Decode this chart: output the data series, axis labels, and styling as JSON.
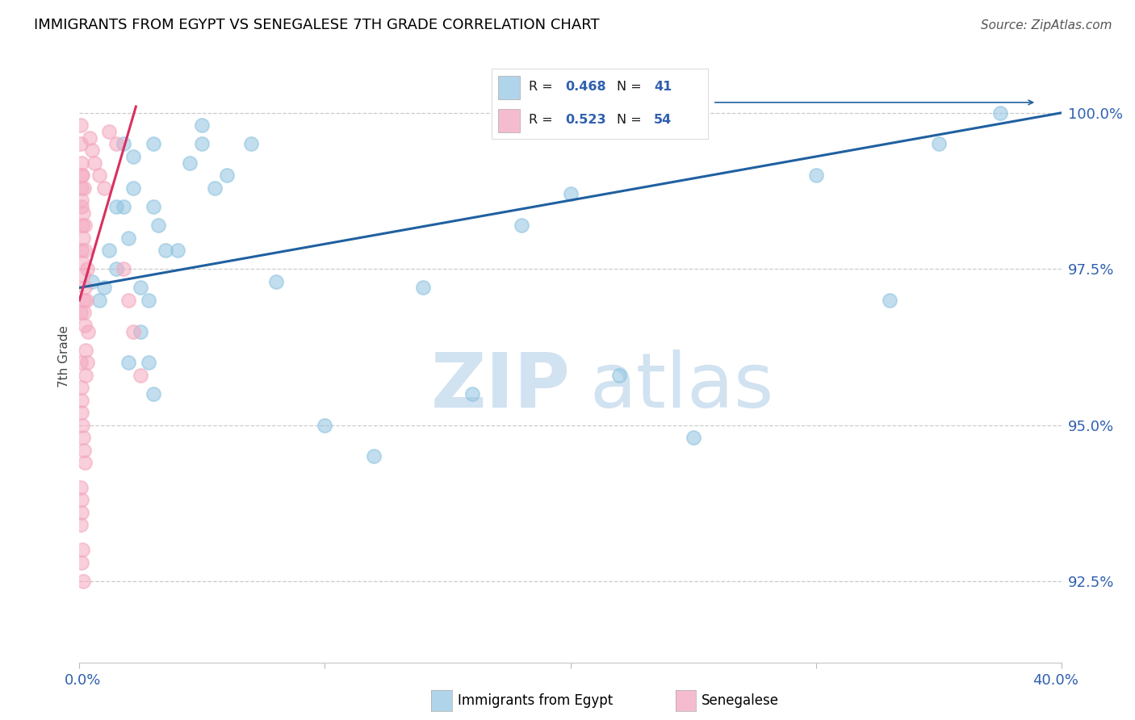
{
  "title": "IMMIGRANTS FROM EGYPT VS SENEGALESE 7TH GRADE CORRELATION CHART",
  "source": "Source: ZipAtlas.com",
  "ylabel": "7th Grade",
  "yticks": [
    92.5,
    95.0,
    97.5,
    100.0
  ],
  "ytick_labels": [
    "92.5%",
    "95.0%",
    "97.5%",
    "100.0%"
  ],
  "xlim": [
    0.0,
    40.0
  ],
  "ylim": [
    91.2,
    101.0
  ],
  "legend1_r": "0.468",
  "legend1_n": "41",
  "legend2_r": "0.523",
  "legend2_n": "54",
  "blue_scatter_color": "#90c4e0",
  "pink_scatter_color": "#f4a8bf",
  "blue_line_color": "#2060a0",
  "pink_line_color": "#d93060",
  "legend_blue_fill": "#b0d4ea",
  "legend_pink_fill": "#f5bccf",
  "legend_text_color": "#1a1a1a",
  "legend_number_color": "#3060b0",
  "ytick_color": "#3060b0",
  "xlim_label_color": "#3060b0",
  "blue_x": [
    0.5,
    0.8,
    1.0,
    1.2,
    1.5,
    1.8,
    2.0,
    2.2,
    2.5,
    2.8,
    3.0,
    3.2,
    3.5,
    4.0,
    4.5,
    5.0,
    5.5,
    6.0,
    7.0,
    8.0,
    10.0,
    12.0,
    14.0,
    16.0,
    18.0,
    20.0,
    22.0,
    25.0,
    30.0,
    33.0,
    35.0,
    37.5,
    2.0,
    2.5,
    3.0,
    1.5,
    1.8,
    2.2,
    3.0,
    2.8,
    5.0
  ],
  "blue_y": [
    97.3,
    97.0,
    97.2,
    97.8,
    97.5,
    98.5,
    98.0,
    98.8,
    97.2,
    97.0,
    98.5,
    98.2,
    97.8,
    97.8,
    99.2,
    99.5,
    98.8,
    99.0,
    99.5,
    97.3,
    95.0,
    94.5,
    97.2,
    95.5,
    98.2,
    98.7,
    95.8,
    94.8,
    99.0,
    97.0,
    99.5,
    100.0,
    96.0,
    96.5,
    95.5,
    98.5,
    99.5,
    99.3,
    99.5,
    96.0,
    99.8
  ],
  "pink_x": [
    0.05,
    0.05,
    0.08,
    0.08,
    0.1,
    0.1,
    0.1,
    0.1,
    0.12,
    0.12,
    0.12,
    0.15,
    0.15,
    0.15,
    0.18,
    0.18,
    0.18,
    0.2,
    0.2,
    0.2,
    0.22,
    0.25,
    0.25,
    0.28,
    0.3,
    0.3,
    0.35,
    0.4,
    0.5,
    0.6,
    0.8,
    1.0,
    1.2,
    1.5,
    1.8,
    2.0,
    2.2,
    2.5,
    0.05,
    0.08,
    0.1,
    0.12,
    0.15,
    0.18,
    0.2,
    0.1,
    0.08,
    0.05,
    0.12,
    0.1,
    0.15,
    0.05,
    0.08,
    0.05
  ],
  "pink_y": [
    99.8,
    99.5,
    99.2,
    99.0,
    98.8,
    98.5,
    97.8,
    98.6,
    98.2,
    97.6,
    99.0,
    97.4,
    98.4,
    98.0,
    96.8,
    97.0,
    98.8,
    97.2,
    96.6,
    98.2,
    97.8,
    96.2,
    95.8,
    97.0,
    97.5,
    96.0,
    96.5,
    99.6,
    99.4,
    99.2,
    99.0,
    98.8,
    99.7,
    99.5,
    97.5,
    97.0,
    96.5,
    95.8,
    96.8,
    95.4,
    95.2,
    95.0,
    94.8,
    94.6,
    94.4,
    93.8,
    93.6,
    93.4,
    93.0,
    92.8,
    92.5,
    96.0,
    95.6,
    94.0
  ],
  "blue_line_x0": 0.0,
  "blue_line_x1": 40.0,
  "blue_line_y0": 97.2,
  "blue_line_y1": 100.0,
  "pink_line_x0": 0.0,
  "pink_line_x1": 2.3,
  "pink_line_y0": 97.0,
  "pink_line_y1": 100.1
}
